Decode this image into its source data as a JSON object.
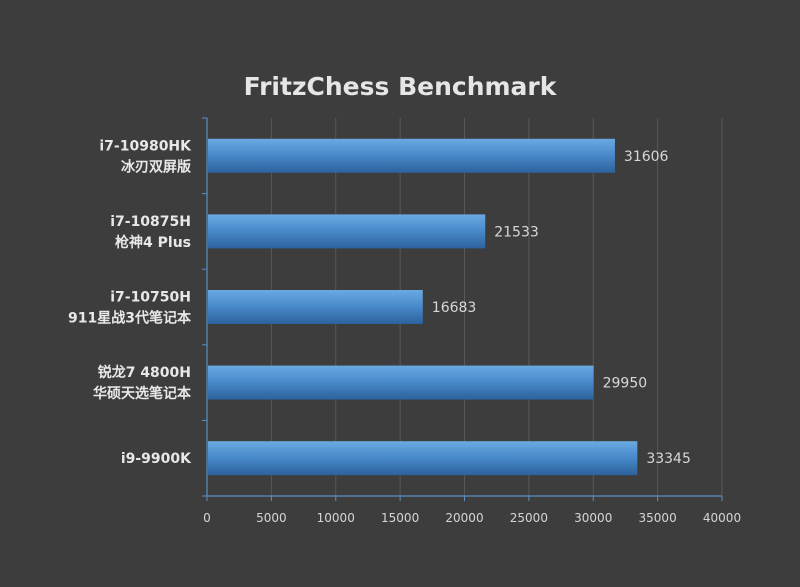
{
  "chart_data": {
    "type": "bar",
    "orientation": "horizontal",
    "title": "FritzChess Benchmark",
    "xlabel": "",
    "ylabel": "",
    "categories": [
      [
        "i7-10980HK",
        "冰刃双屏版"
      ],
      [
        "i7-10875H",
        "枪神4 Plus"
      ],
      [
        "i7-10750H",
        "911星战3代笔记本"
      ],
      [
        "锐龙7 4800H",
        "华硕天选笔记本"
      ],
      [
        "i9-9900K"
      ]
    ],
    "values": [
      31606,
      21533,
      16683,
      29950,
      33345
    ],
    "xlim": [
      0,
      40000
    ],
    "xticks": [
      "0",
      "5000",
      "10000",
      "15000",
      "20000",
      "25000",
      "30000",
      "35000",
      "40000"
    ],
    "grid": true,
    "legend": "none",
    "colors": {
      "background": "#3d3d3d",
      "bar_top": "#5b9bd5",
      "bar_bottom": "#2e6aa6",
      "axis": "#5b8fc4",
      "grid": "#585858"
    }
  }
}
